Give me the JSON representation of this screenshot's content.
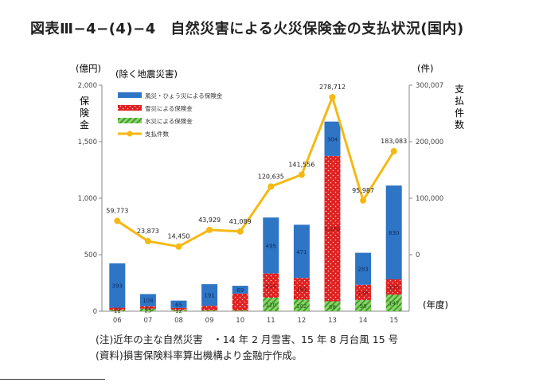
{
  "title": "図表Ⅲ−4−(4)−4　自然災害による火災保険金の支払状況(国内)",
  "notes": {
    "note1": "(注)近年の主な自然災害　・14 年 2 月雪害、15 年 8 月台風 15 号",
    "note2": "(資料)損害保険料率算出機構より金融庁作成。"
  },
  "colors": {
    "wind": "#2e75c5",
    "snow": "#e02020",
    "water": "#5cbf3a",
    "count": "#f5b914"
  },
  "chart_data": {
    "type": "bar",
    "stacked": true,
    "left_unit": "(億円)",
    "right_unit": "(件)",
    "subtitle": "(除く地震災害)",
    "ylabel": "保険金",
    "y2label": "支払件数",
    "xunit": "(年度)",
    "categories": [
      "06",
      "07",
      "08",
      "09",
      "10",
      "11",
      "12",
      "13",
      "14",
      "15"
    ],
    "ylim": [
      0,
      2000
    ],
    "yticks": [
      "0",
      "500",
      "1,000",
      "1,500",
      "2,000"
    ],
    "y2lim": [
      -100000,
      300000
    ],
    "y2ticks": [
      "0",
      "100,000",
      "200,000",
      "300,007"
    ],
    "legend": {
      "position": "top-left"
    },
    "series": [
      {
        "name": "水災による保険金",
        "kind": "bar",
        "color": "water",
        "values": [
          11,
          23,
          12,
          8,
          6,
          120,
          102,
          88,
          98,
          147
        ],
        "labels": [
          "11",
          "23",
          "12",
          "",
          "",
          "120",
          "102",
          "88",
          "98",
          "147"
        ]
      },
      {
        "name": "雪災による保険金",
        "kind": "bar",
        "color": "snow",
        "values": [
          20,
          21,
          17,
          40,
          150,
          214,
          192,
          1286,
          136,
          135
        ],
        "labels": [
          "20",
          "21",
          "17",
          "",
          "",
          "214",
          "192",
          "1,286",
          "136",
          "135"
        ]
      },
      {
        "name": "風災・ひょう災による保険金",
        "kind": "bar",
        "color": "wind",
        "values": [
          393,
          108,
          65,
          191,
          69,
          495,
          471,
          304,
          283,
          830
        ],
        "labels": [
          "393",
          "108",
          "65",
          "191",
          "69",
          "495",
          "471",
          "304",
          "283",
          "830"
        ]
      },
      {
        "name": "支払件数",
        "kind": "line",
        "color": "count",
        "axis": "right",
        "values": [
          59773,
          23873,
          14450,
          43929,
          41089,
          120635,
          141556,
          278712,
          95987,
          183083
        ],
        "labels": [
          "59,773",
          "23,873",
          "14,450",
          "43,929",
          "41,089",
          "120,635",
          "141,556",
          "278,712",
          "95,987",
          "183,083"
        ]
      }
    ]
  }
}
